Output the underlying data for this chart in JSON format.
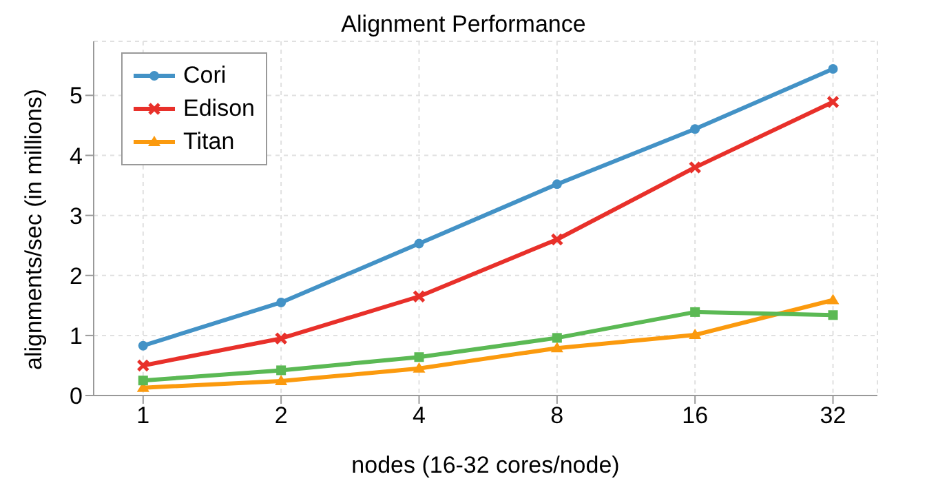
{
  "chart_data": {
    "type": "line",
    "title": "Alignment Performance",
    "xlabel": "nodes (16-32 cores/node)",
    "ylabel": "alignments/sec (in millions)",
    "x": [
      1,
      2,
      4,
      8,
      16,
      32
    ],
    "log": "x",
    "xlim": [
      0.78,
      40
    ],
    "xticks": [
      1,
      2,
      4,
      8,
      16,
      32
    ],
    "ylim": [
      0,
      5.9
    ],
    "yticks": [
      0,
      1,
      2,
      3,
      4,
      5
    ],
    "grid": true,
    "legend": "top left",
    "line_style": "solid",
    "series": [
      {
        "name": "Cori",
        "color": "#4392c6",
        "marker": "circle",
        "values": [
          0.83,
          1.55,
          2.53,
          3.52,
          4.44,
          5.44
        ]
      },
      {
        "name": "Edison",
        "color": "#e8302a",
        "marker": "cross",
        "values": [
          0.5,
          0.95,
          1.65,
          2.6,
          3.8,
          4.89
        ]
      },
      {
        "name": "Titan",
        "color": "#fb9a0e",
        "marker": "triangle",
        "values": [
          0.13,
          0.24,
          0.45,
          0.79,
          1.01,
          1.59
        ]
      },
      {
        "color": "#5bb954",
        "marker": "square",
        "values": [
          0.25,
          0.42,
          0.64,
          0.96,
          1.39,
          1.34
        ]
      }
    ]
  }
}
